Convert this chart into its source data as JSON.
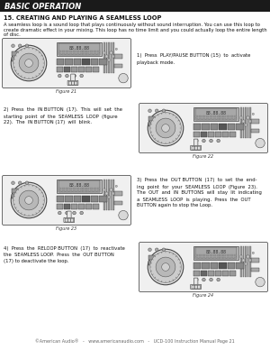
{
  "title_bar": "BASIC OPERATION",
  "section_title": "15. CREATING AND PLAYING A SEAMLESS LOOP",
  "intro_line1": "A seamless loop is a sound loop that plays continuously without sound interruption. You can use this loop to",
  "intro_line2": "create dramatic effect in your mixing. This loop has no time limit and you could actually loop the entire length",
  "intro_line3": "of disc.",
  "step1_line1": "1)  Press  PLAY/PAUSE BUTTON (15)  to  activate",
  "step1_line2": "playback mode.",
  "figure1_label": "Figure 21",
  "step2_line1": "2)  Press  the  IN BUTTON  (17).  This  will  set  the",
  "step2_line2": "starting  point  of  the  SEAMLESS  LOOP  (figure",
  "step2_line3": "22).  The  IN BUTTON (17)  will  blink.",
  "figure2_label": "Figure 22",
  "step3_line1": "3)  Press  the  OUT BUTTON  (17)  to  set  the  end-",
  "step3_line2": "ing  point  for  your  SEAMLESS  LOOP  (Figure  23).",
  "step3_line3": "The  OUT  and  IN  BUTTONS  will  stay  lit  indicating",
  "step3_line4": "a  SEAMLESS  LOOP  is  playing.  Press  the  OUT",
  "step3_line5": "BUTTON again to stop the Loop.",
  "figure3_label": "Figure 23",
  "step4_line1": "4)  Press  the  RELOOP BUTTON  (17)  to  reactivate",
  "step4_line2": "the  SEAMLESS LOOP.  Press  the  OUT BUTTON",
  "step4_line3": "(17) to deactivate the loop.",
  "figure4_label": "Figure 24",
  "footer": "©American Audio®   -   www.americanaudio.com   -   UCD-100 Instruction Manual Page 21",
  "bg_color": "#ffffff",
  "title_bar_color": "#1a1a1a",
  "title_bar_text_color": "#ffffff",
  "body_text_color": "#111111",
  "device_outer": "#f0f0f0",
  "device_edge": "#555555",
  "jog_outer": "#c8c8c8",
  "jog_inner": "#aaaaaa",
  "display_bg": "#bbbbbb",
  "button_light": "#cccccc",
  "button_dark": "#555555",
  "slider_bg": "#999999"
}
